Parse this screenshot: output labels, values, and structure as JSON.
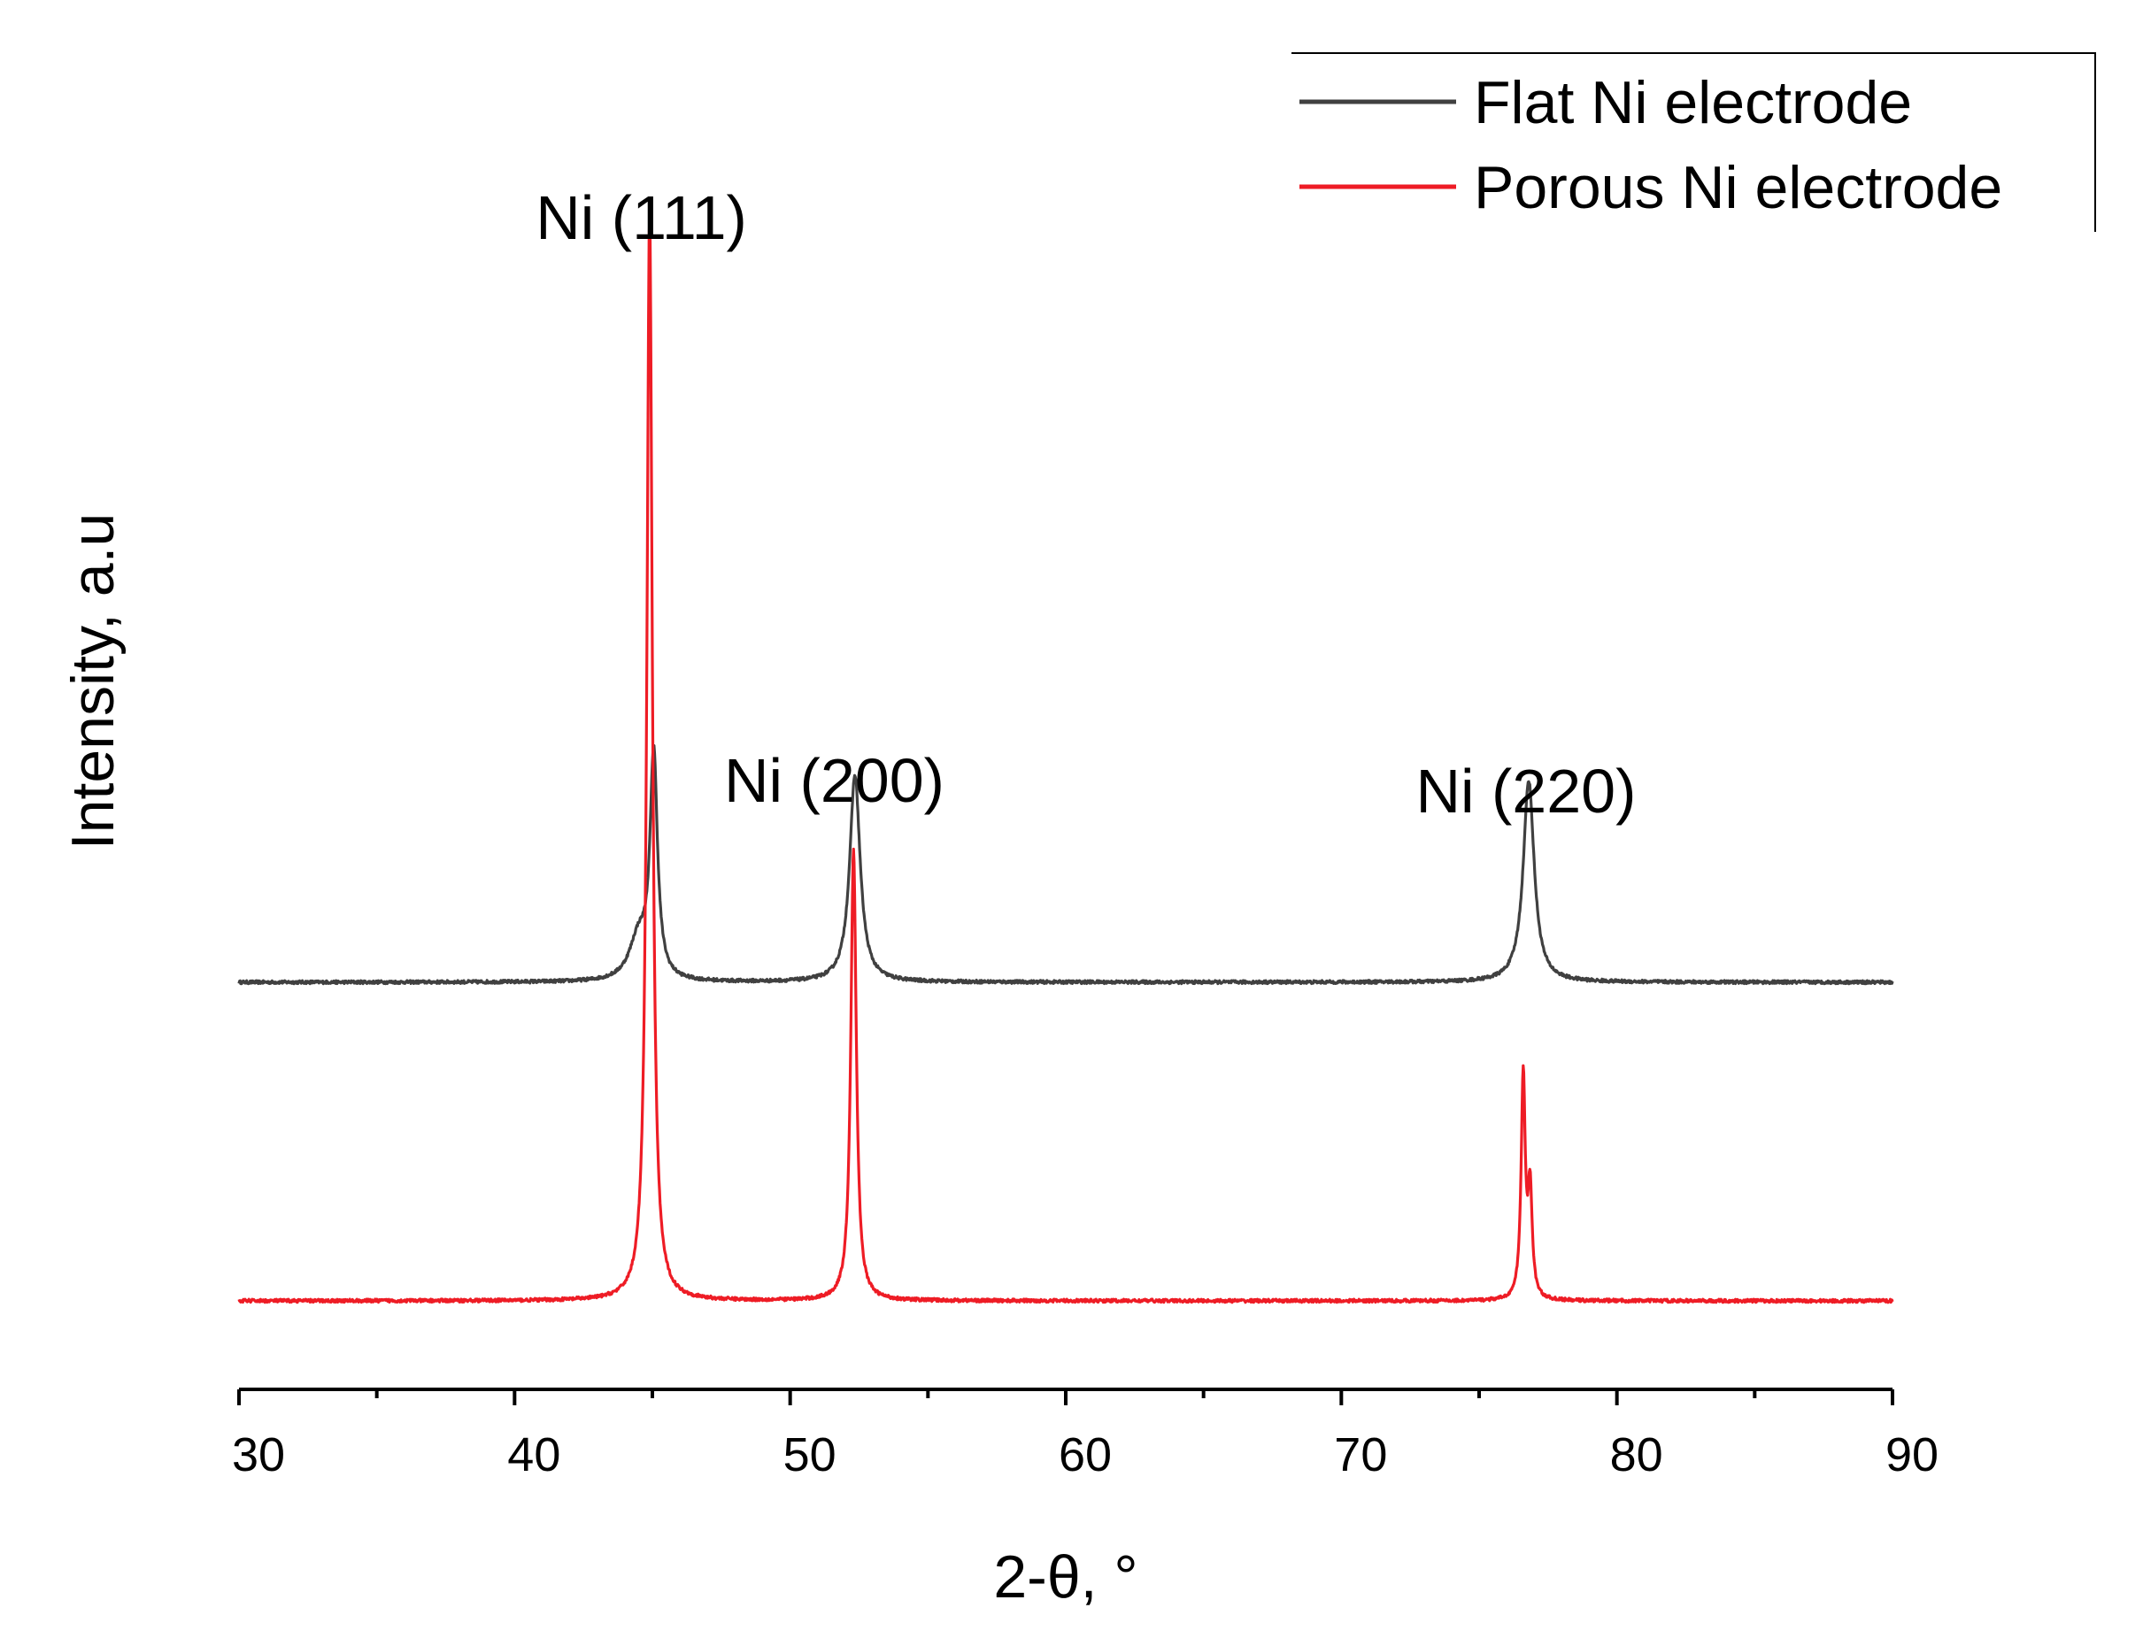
{
  "chart_data": {
    "type": "line",
    "xlabel": "2-θ, °",
    "ylabel": "Intensity, a.u",
    "xlim": [
      30,
      90
    ],
    "xticks": [
      30,
      40,
      50,
      60,
      70,
      80,
      90
    ],
    "x_minor_ticks": [
      35,
      45,
      55,
      65,
      75,
      85
    ],
    "y_ticks_shown": false,
    "grid": false,
    "legend_position": "top-right",
    "annotations": [
      {
        "text": "Ni (111)",
        "x": 44.6,
        "y": 100
      },
      {
        "text": "Ni (200)",
        "x": 51.6,
        "y": 47
      },
      {
        "text": "Ni (220)",
        "x": 76.7,
        "y": 46
      }
    ],
    "series": [
      {
        "name": "Flat Ni electrode",
        "color": "#404040",
        "baseline": 30,
        "noise": 0.3,
        "peaks": [
          {
            "x": 44.5,
            "height": 4,
            "width": 0.4
          },
          {
            "x": 45.05,
            "height": 21,
            "width": 0.16
          },
          {
            "x": 52.35,
            "height": 19.5,
            "width": 0.23
          },
          {
            "x": 76.8,
            "height": 19,
            "width": 0.24
          }
        ]
      },
      {
        "name": "Porous Ni electrode",
        "color": "#ee1c25",
        "baseline": 0,
        "noise": 0.3,
        "peaks": [
          {
            "x": 44.9,
            "height": 102.5,
            "width": 0.12
          },
          {
            "x": 52.3,
            "height": 42.5,
            "width": 0.12
          },
          {
            "x": 76.6,
            "height": 21,
            "width": 0.09
          },
          {
            "x": 76.85,
            "height": 10,
            "width": 0.09
          }
        ]
      }
    ]
  }
}
